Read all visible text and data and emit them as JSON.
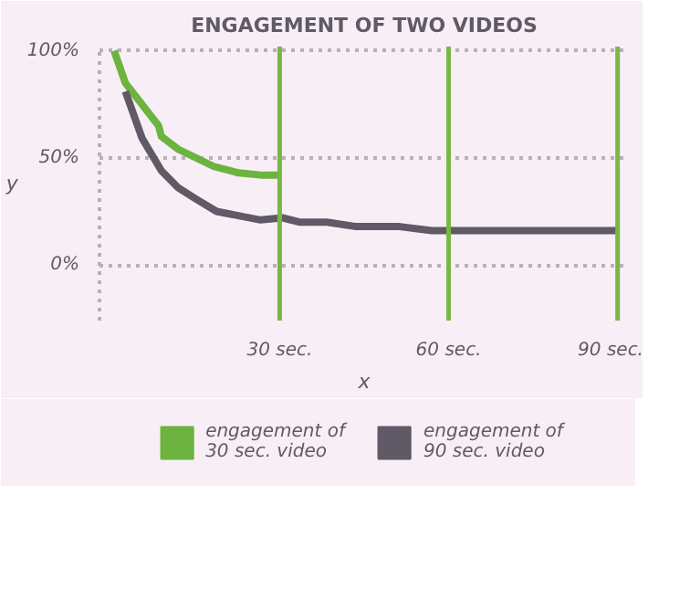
{
  "chart_data": {
    "type": "line",
    "title": "ENGAGEMENT OF TWO VIDEOS",
    "xlabel": "x",
    "ylabel": "y",
    "xlim": [
      -2,
      92
    ],
    "ylim": [
      -26,
      102
    ],
    "xticks": [
      {
        "value": 30,
        "label": "30 sec."
      },
      {
        "value": 60,
        "label": "60 sec."
      },
      {
        "value": 90,
        "label": "90 sec."
      }
    ],
    "yticks": [
      {
        "value": 0,
        "label": "0%"
      },
      {
        "value": 50,
        "label": "50%"
      },
      {
        "value": 100,
        "label": "100%"
      }
    ],
    "grid": "y",
    "legend": "bottom",
    "marker": "none",
    "line_style": "solid",
    "ref_lines": [
      {
        "axis": "x",
        "value": 30,
        "label": null,
        "color": "#78b843"
      },
      {
        "axis": "x",
        "value": 60,
        "label": null,
        "color": "#78b843"
      },
      {
        "axis": "x",
        "value": 90,
        "label": null,
        "color": "#78b843"
      }
    ],
    "series": [
      {
        "name": "engagement of\n30 sec. video",
        "color": "#6db33f",
        "x": [
          0.6,
          2.6,
          8.5,
          9,
          12,
          18.3,
          22.7,
          26.6,
          30
        ],
        "values": [
          100,
          85,
          65,
          60,
          54,
          46,
          43,
          42,
          42
        ]
      },
      {
        "name": "engagement of\n90 sec. video",
        "color": "#5f5a66",
        "x": [
          2.6,
          5.6,
          9,
          12,
          15,
          18.8,
          26.6,
          30.5,
          33.5,
          38.4,
          43.3,
          51,
          57,
          69.8,
          77.6,
          90
        ],
        "values": [
          81,
          59,
          44,
          36,
          31,
          25,
          21,
          22,
          20,
          20,
          18,
          18,
          16,
          16,
          16,
          16
        ]
      }
    ]
  }
}
